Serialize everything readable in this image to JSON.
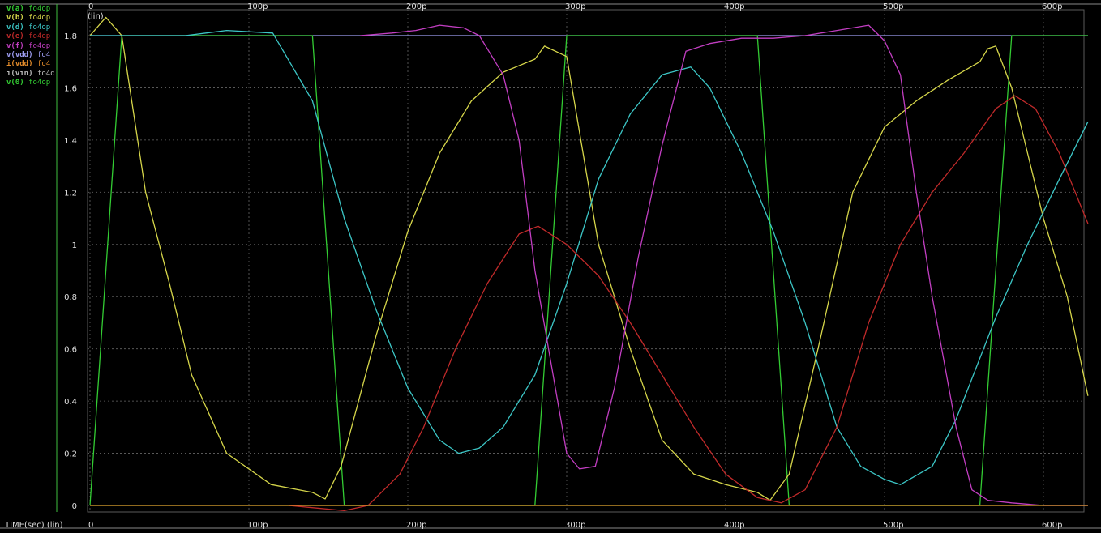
{
  "legend": [
    {
      "signal": "v(a)",
      "source": "fo4op",
      "color": "#33cc33"
    },
    {
      "signal": "v(b)",
      "source": "fo4op",
      "color": "#d6d64a"
    },
    {
      "signal": "v(d)",
      "source": "fo4op",
      "color": "#3cc6c6"
    },
    {
      "signal": "v(e)",
      "source": "fo4op",
      "color": "#c02a2a"
    },
    {
      "signal": "v(f)",
      "source": "fo4op",
      "color": "#c23ec2"
    },
    {
      "signal": "v(vdd)",
      "source": "fo4",
      "color": "#9c9cf0"
    },
    {
      "signal": "i(vdd)",
      "source": "fo4",
      "color": "#e08a2a"
    },
    {
      "signal": "i(vin)",
      "source": "fo4d",
      "color": "#bbbbbb"
    },
    {
      "signal": "v(0)",
      "source": "fo4op",
      "color": "#33cc33"
    }
  ],
  "x_axis_label": "TIME(sec) (lin)",
  "y_axis_label": "(lin)",
  "chart_data": {
    "type": "line",
    "xlabel": "TIME(sec) (lin)",
    "ylabel": "(lin)",
    "xlim": [
      0,
      628
    ],
    "ylim": [
      -0.05,
      1.84
    ],
    "grid": true,
    "x_ticks": [
      0,
      100,
      200,
      300,
      400,
      500,
      600
    ],
    "x_tick_labels": [
      "0",
      "100p",
      "200p",
      "300p",
      "400p",
      "500p",
      "600p"
    ],
    "y_ticks": [
      0,
      0.2,
      0.4,
      0.6,
      0.8,
      1,
      1.2,
      1.4,
      1.6,
      1.8
    ],
    "y_tick_labels": [
      "0",
      "0.2",
      "0.4",
      "0.6",
      "0.8",
      "1",
      "1.2",
      "1.4",
      "1.6",
      "1.8"
    ],
    "series": [
      {
        "name": "v(vdd)",
        "color": "#9c9cf0",
        "points": [
          [
            0,
            1.8
          ],
          [
            628,
            1.8
          ]
        ]
      },
      {
        "name": "v(0)",
        "color": "#33cc33",
        "points": [
          [
            0,
            0
          ],
          [
            628,
            0
          ]
        ]
      },
      {
        "name": "v(a)",
        "color": "#33cc33",
        "points": [
          [
            0,
            0
          ],
          [
            20,
            1.8
          ],
          [
            140,
            1.8
          ],
          [
            160,
            0
          ],
          [
            280,
            0
          ],
          [
            300,
            1.8
          ],
          [
            420,
            1.8
          ],
          [
            440,
            0
          ],
          [
            560,
            0
          ],
          [
            580,
            1.8
          ],
          [
            628,
            1.8
          ]
        ]
      },
      {
        "name": "v(b)",
        "color": "#d6d64a",
        "points": [
          [
            0,
            1.8
          ],
          [
            10,
            1.87
          ],
          [
            20,
            1.8
          ],
          [
            35,
            1.2
          ],
          [
            50,
            0.85
          ],
          [
            64,
            0.5
          ],
          [
            86,
            0.2
          ],
          [
            114,
            0.08
          ],
          [
            140,
            0.05
          ],
          [
            148,
            0.025
          ],
          [
            158,
            0.15
          ],
          [
            180,
            0.65
          ],
          [
            200,
            1.05
          ],
          [
            220,
            1.35
          ],
          [
            240,
            1.55
          ],
          [
            260,
            1.66
          ],
          [
            280,
            1.71
          ],
          [
            286,
            1.76
          ],
          [
            300,
            1.72
          ],
          [
            320,
            1.0
          ],
          [
            340,
            0.6
          ],
          [
            360,
            0.25
          ],
          [
            380,
            0.12
          ],
          [
            400,
            0.08
          ],
          [
            420,
            0.05
          ],
          [
            428,
            0.02
          ],
          [
            440,
            0.12
          ],
          [
            460,
            0.65
          ],
          [
            480,
            1.2
          ],
          [
            500,
            1.45
          ],
          [
            520,
            1.55
          ],
          [
            540,
            1.63
          ],
          [
            560,
            1.7
          ],
          [
            565,
            1.75
          ],
          [
            570,
            1.76
          ],
          [
            580,
            1.6
          ],
          [
            600,
            1.1
          ],
          [
            615,
            0.8
          ],
          [
            628,
            0.42
          ]
        ]
      },
      {
        "name": "v(d)",
        "color": "#3cc6c6",
        "points": [
          [
            0,
            1.8
          ],
          [
            30,
            1.8
          ],
          [
            60,
            1.8
          ],
          [
            86,
            1.82
          ],
          [
            115,
            1.81
          ],
          [
            140,
            1.55
          ],
          [
            160,
            1.1
          ],
          [
            180,
            0.75
          ],
          [
            200,
            0.45
          ],
          [
            220,
            0.25
          ],
          [
            232,
            0.2
          ],
          [
            245,
            0.22
          ],
          [
            260,
            0.3
          ],
          [
            280,
            0.5
          ],
          [
            300,
            0.85
          ],
          [
            320,
            1.25
          ],
          [
            340,
            1.5
          ],
          [
            360,
            1.65
          ],
          [
            378,
            1.68
          ],
          [
            390,
            1.6
          ],
          [
            410,
            1.35
          ],
          [
            430,
            1.05
          ],
          [
            450,
            0.7
          ],
          [
            470,
            0.3
          ],
          [
            485,
            0.15
          ],
          [
            500,
            0.1
          ],
          [
            510,
            0.08
          ],
          [
            530,
            0.15
          ],
          [
            545,
            0.33
          ],
          [
            570,
            0.72
          ],
          [
            590,
            1.0
          ],
          [
            610,
            1.25
          ],
          [
            628,
            1.47
          ]
        ]
      },
      {
        "name": "v(e)",
        "color": "#c02a2a",
        "points": [
          [
            125,
            0.0
          ],
          [
            160,
            -0.02
          ],
          [
            175,
            0.0
          ],
          [
            195,
            0.12
          ],
          [
            210,
            0.3
          ],
          [
            230,
            0.6
          ],
          [
            250,
            0.85
          ],
          [
            270,
            1.04
          ],
          [
            282,
            1.07
          ],
          [
            300,
            1.0
          ],
          [
            320,
            0.88
          ],
          [
            340,
            0.7
          ],
          [
            360,
            0.5
          ],
          [
            380,
            0.3
          ],
          [
            400,
            0.12
          ],
          [
            420,
            0.03
          ],
          [
            435,
            0.01
          ],
          [
            450,
            0.06
          ],
          [
            470,
            0.3
          ],
          [
            490,
            0.7
          ],
          [
            510,
            1.0
          ],
          [
            530,
            1.2
          ],
          [
            550,
            1.35
          ],
          [
            570,
            1.52
          ],
          [
            582,
            1.57
          ],
          [
            595,
            1.52
          ],
          [
            610,
            1.35
          ],
          [
            628,
            1.08
          ]
        ]
      },
      {
        "name": "v(f)",
        "color": "#c23ec2",
        "points": [
          [
            170,
            1.8
          ],
          [
            190,
            1.81
          ],
          [
            205,
            1.82
          ],
          [
            220,
            1.84
          ],
          [
            235,
            1.83
          ],
          [
            245,
            1.8
          ],
          [
            260,
            1.65
          ],
          [
            270,
            1.4
          ],
          [
            280,
            0.9
          ],
          [
            290,
            0.55
          ],
          [
            300,
            0.2
          ],
          [
            308,
            0.14
          ],
          [
            318,
            0.15
          ],
          [
            330,
            0.45
          ],
          [
            345,
            0.95
          ],
          [
            360,
            1.38
          ],
          [
            375,
            1.74
          ],
          [
            390,
            1.77
          ],
          [
            410,
            1.79
          ],
          [
            430,
            1.79
          ],
          [
            450,
            1.8
          ],
          [
            470,
            1.82
          ],
          [
            490,
            1.84
          ],
          [
            500,
            1.78
          ],
          [
            510,
            1.65
          ],
          [
            520,
            1.2
          ],
          [
            530,
            0.8
          ],
          [
            545,
            0.3
          ],
          [
            555,
            0.06
          ],
          [
            565,
            0.02
          ],
          [
            580,
            0.01
          ],
          [
            600,
            0.0
          ],
          [
            628,
            0.0
          ]
        ]
      },
      {
        "name": "i(vdd)",
        "color": "#e08a2a",
        "points": [
          [
            0,
            0.0
          ],
          [
            628,
            0.0
          ]
        ]
      }
    ]
  }
}
